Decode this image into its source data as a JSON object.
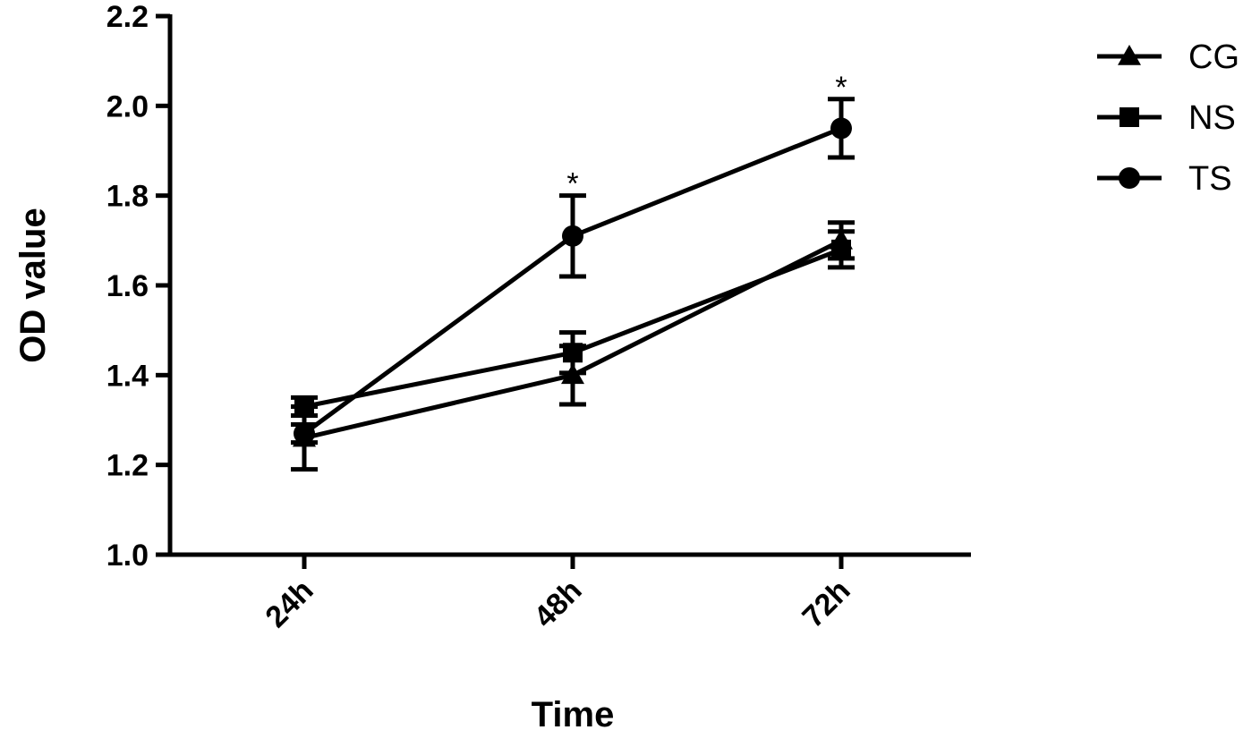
{
  "chart_data": {
    "type": "line",
    "title": "",
    "xlabel": "Time",
    "ylabel": "OD value",
    "categories": [
      "24h",
      "48h",
      "72h"
    ],
    "ylim": [
      1.0,
      2.2
    ],
    "yticks": [
      "1.0",
      "1.2",
      "1.4",
      "1.6",
      "1.8",
      "2.0",
      "2.2"
    ],
    "grid": false,
    "legend_position": "top-right",
    "series": [
      {
        "name": "CG",
        "marker": "triangle",
        "values": [
          1.26,
          1.4,
          1.7
        ],
        "errors": [
          0.07,
          0.065,
          0.04
        ]
      },
      {
        "name": "NS",
        "marker": "square",
        "values": [
          1.33,
          1.45,
          1.68
        ],
        "errors": [
          0.02,
          0.045,
          0.04
        ]
      },
      {
        "name": "TS",
        "marker": "circle",
        "values": [
          1.27,
          1.71,
          1.95
        ],
        "errors": [
          0.02,
          0.09,
          0.065
        ]
      }
    ],
    "annotations": [
      {
        "category": "48h",
        "value": 1.8,
        "text": "*"
      },
      {
        "category": "72h",
        "value": 2.015,
        "text": "*"
      }
    ]
  }
}
